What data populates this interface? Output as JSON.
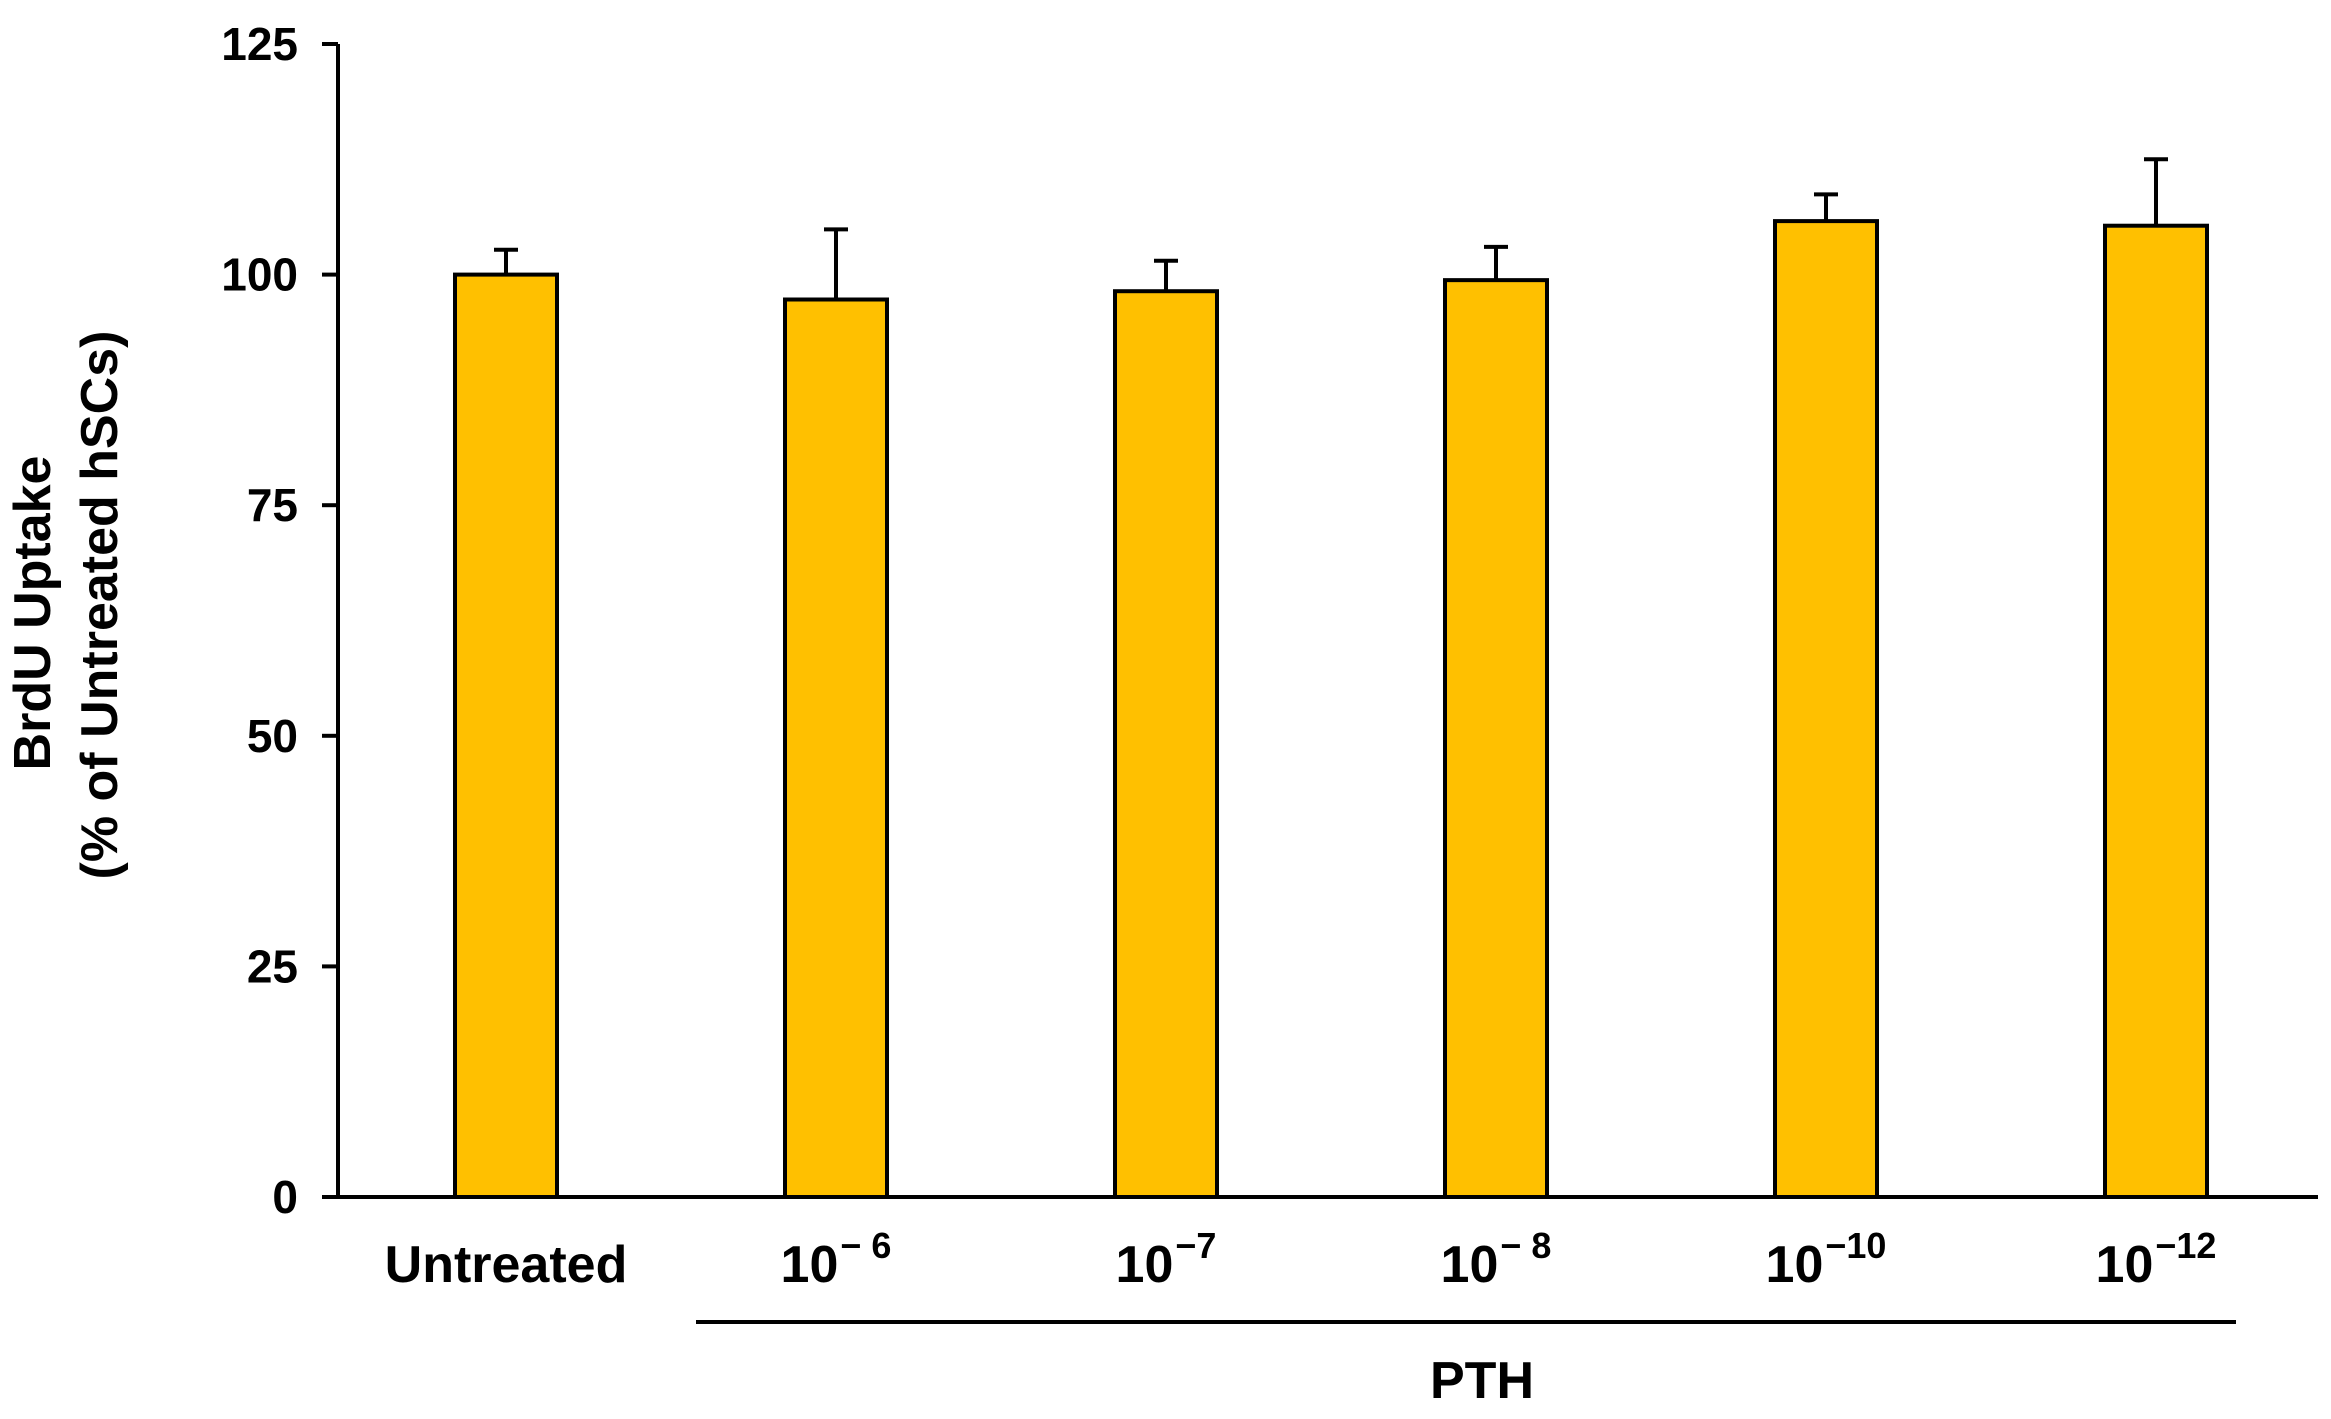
{
  "chart_data": {
    "type": "bar",
    "categories": [
      {
        "base": "Untreated",
        "exponent": ""
      },
      {
        "base": "10",
        "exponent": "− 6"
      },
      {
        "base": "10",
        "exponent": "−7"
      },
      {
        "base": "10",
        "exponent": "− 8"
      },
      {
        "base": "10",
        "exponent": "−10"
      },
      {
        "base": "10",
        "exponent": "−12"
      }
    ],
    "values": [
      100,
      97.3,
      98.2,
      99.4,
      105.8,
      105.3
    ],
    "errors": [
      2.7,
      7.6,
      3.3,
      3.6,
      2.9,
      7.2
    ],
    "ylabel_line1": "BrdU Uptake",
    "ylabel_line2": "(% of Untreated hSCs)",
    "ylim": [
      0,
      125
    ],
    "yticks": [
      0,
      25,
      50,
      75,
      100,
      125
    ],
    "group_label": "PTH",
    "group_members": [
      1,
      2,
      3,
      4,
      5
    ],
    "bar_color": "#FFC000",
    "edge_color": "#000000",
    "grid": false,
    "legend": "none"
  }
}
